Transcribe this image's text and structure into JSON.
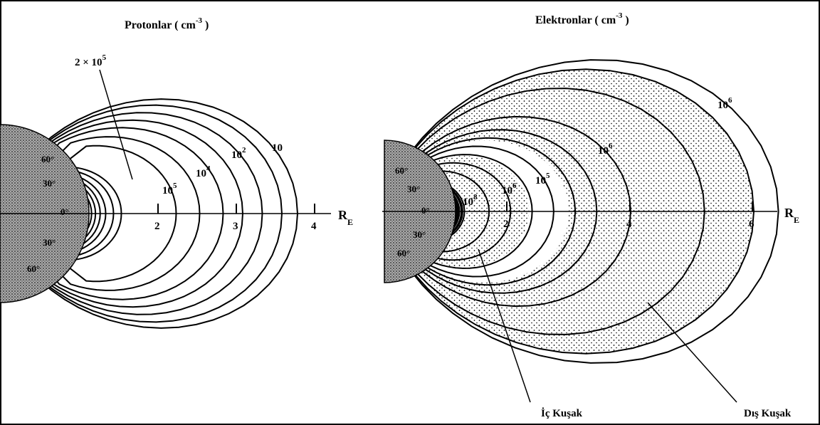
{
  "panels": [
    {
      "title": {
        "text": "Protonlar ( cm",
        "sup": "-3",
        "close": " )"
      },
      "axis_label": {
        "text": "R",
        "sub": "E"
      },
      "ticks": [
        "2",
        "3",
        "4"
      ],
      "latitudes": [
        "60°",
        "30°",
        "0°",
        "30°",
        "60°"
      ],
      "contour_labels": [
        {
          "text": "2 × 10",
          "sup": "5"
        },
        {
          "text": "10",
          "sup": "5"
        },
        {
          "text": "10",
          "sup": "4"
        },
        {
          "text": "10",
          "sup": "2"
        },
        {
          "text": "10"
        }
      ]
    },
    {
      "title": {
        "text": "Elektronlar ( cm",
        "sup": "-3",
        "close": " )"
      },
      "axis_label": {
        "text": "R",
        "sub": "E"
      },
      "ticks": [
        "2",
        "4",
        "6"
      ],
      "latitudes": [
        "60°",
        "30°",
        "0°",
        "30°",
        "60°"
      ],
      "contour_labels": [
        {
          "text": "10",
          "sup": "8"
        },
        {
          "text": "10",
          "sup": "6"
        },
        {
          "text": "10",
          "sup": "5"
        },
        {
          "text": "10",
          "sup": "6"
        },
        {
          "text": "10",
          "sup": "6"
        }
      ],
      "belt_labels": [
        "İç Kuşak",
        "Dış Kuşak"
      ]
    }
  ]
}
